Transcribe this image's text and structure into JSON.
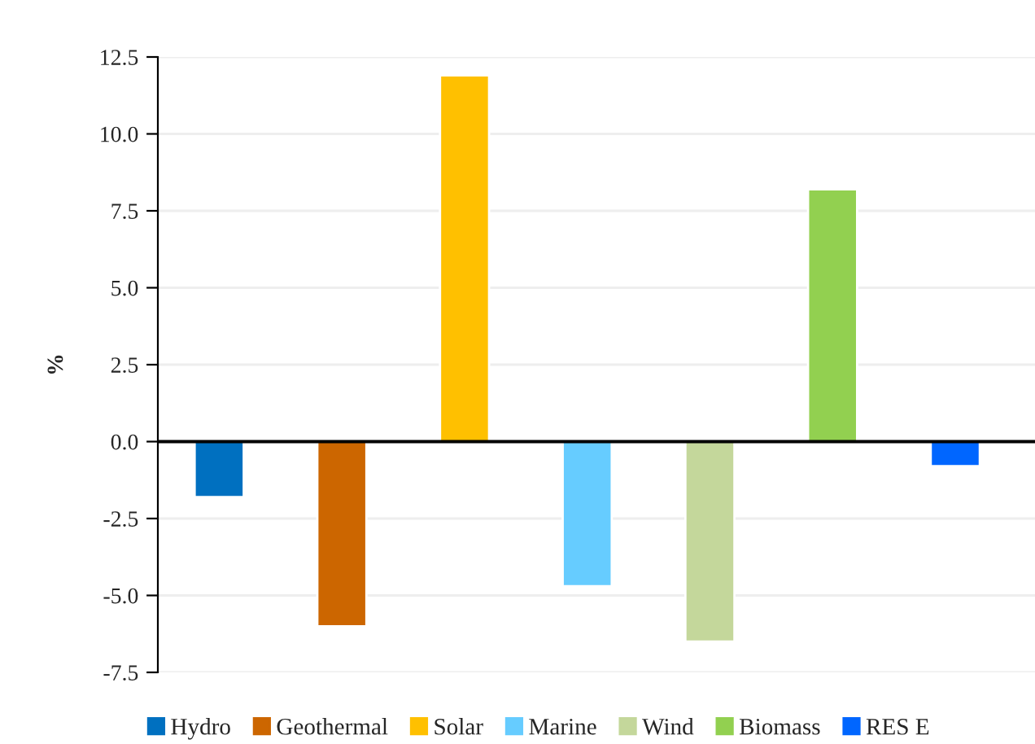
{
  "chart_data": {
    "type": "bar",
    "ylabel": "%",
    "categories": [
      null,
      null,
      null,
      null,
      null,
      null,
      null
    ],
    "series": [
      {
        "name": "Hydro",
        "color": "#0070c0",
        "values": [
          -1.8,
          null,
          null,
          null,
          null,
          null,
          null
        ]
      },
      {
        "name": "Geothermal",
        "color": "#cc6600",
        "values": [
          null,
          -6.0,
          null,
          null,
          null,
          null,
          null
        ]
      },
      {
        "name": "Solar",
        "color": "#ffc000",
        "values": [
          null,
          null,
          11.9,
          null,
          null,
          null,
          null
        ]
      },
      {
        "name": "Marine",
        "color": "#66ccff",
        "values": [
          null,
          null,
          null,
          -4.7,
          null,
          null,
          null
        ]
      },
      {
        "name": "Wind",
        "color": "#c4d79b",
        "values": [
          null,
          null,
          null,
          null,
          -6.5,
          null,
          null
        ]
      },
      {
        "name": "Biomass",
        "color": "#92d050",
        "values": [
          null,
          null,
          null,
          null,
          null,
          8.2,
          null
        ]
      },
      {
        "name": "RES E",
        "color": "#0066ff",
        "values": [
          null,
          null,
          null,
          null,
          null,
          null,
          -0.8
        ]
      }
    ],
    "ylim": [
      -7.5,
      12.5
    ],
    "yticks": [
      {
        "value": 12.5,
        "label": "12.5"
      },
      {
        "value": 10,
        "label": "10.0"
      },
      {
        "value": 7.5,
        "label": "7.5"
      },
      {
        "value": 5,
        "label": "5.0"
      },
      {
        "value": 2.5,
        "label": "2.5"
      },
      {
        "value": 0,
        "label": "0.0"
      },
      {
        "value": -2.5,
        "label": "-2.5"
      },
      {
        "value": -5,
        "label": "-5.0"
      },
      {
        "value": -7.5,
        "label": "-7.5"
      }
    ],
    "grid": "y",
    "legend": "bottom"
  }
}
